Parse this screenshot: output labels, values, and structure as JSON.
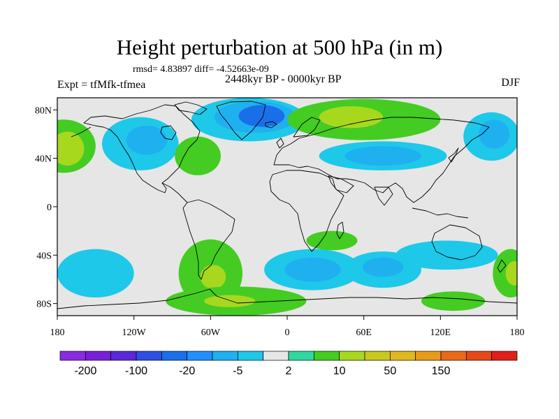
{
  "header": {
    "title": "Height perturbation at 500 hPa (in m)",
    "rmsd_line": "rmsd= 4.83897 diff= -4.52663e-09",
    "experiment": "Expt = tfMfk-tfmea",
    "period": "2448kyr BP - 0000kyr BP",
    "season": "DJF"
  },
  "map": {
    "projection": "equirectangular",
    "lon_range": [
      -180,
      180
    ],
    "lat_range": [
      -90,
      90
    ],
    "lat_ticks": [
      {
        "lat": 80,
        "label": "80N"
      },
      {
        "lat": 40,
        "label": "40N"
      },
      {
        "lat": 0,
        "label": "0"
      },
      {
        "lat": -40,
        "label": "40S"
      },
      {
        "lat": -80,
        "label": "80S"
      }
    ],
    "lon_ticks": [
      {
        "lon": -180,
        "label": "180"
      },
      {
        "lon": -120,
        "label": "120W"
      },
      {
        "lon": -60,
        "label": "60W"
      },
      {
        "lon": 0,
        "label": "0"
      },
      {
        "lon": 60,
        "label": "60E"
      },
      {
        "lon": 120,
        "label": "120E"
      },
      {
        "lon": 180,
        "label": "180"
      }
    ],
    "background_color": "#e6e6e6",
    "contour_regions": [
      {
        "name": "ne-pacific-high",
        "level": "green",
        "lon": -175,
        "lat": 50,
        "rx": 25,
        "ry": 22
      },
      {
        "name": "ne-pacific-high-core",
        "level": "yellow-green",
        "lon": -172,
        "lat": 48,
        "rx": 13,
        "ry": 14
      },
      {
        "name": "n-america-low",
        "level": "cyan",
        "lon": -115,
        "lat": 52,
        "rx": 30,
        "ry": 22
      },
      {
        "name": "n-america-low-core",
        "level": "light-blue",
        "lon": -110,
        "lat": 55,
        "rx": 16,
        "ry": 12
      },
      {
        "name": "e-us-high",
        "level": "green",
        "lon": -70,
        "lat": 42,
        "rx": 18,
        "ry": 16
      },
      {
        "name": "greenland-low",
        "level": "cyan",
        "lon": -30,
        "lat": 72,
        "rx": 45,
        "ry": 18
      },
      {
        "name": "greenland-low-mid",
        "level": "light-blue",
        "lon": -25,
        "lat": 74,
        "rx": 32,
        "ry": 13
      },
      {
        "name": "greenland-low-core",
        "level": "blue",
        "lon": -20,
        "lat": 75,
        "rx": 18,
        "ry": 9
      },
      {
        "name": "eurasia-high",
        "level": "green",
        "lon": 60,
        "lat": 72,
        "rx": 60,
        "ry": 17
      },
      {
        "name": "eurasia-high-core",
        "level": "yellow-green",
        "lon": 50,
        "lat": 74,
        "rx": 25,
        "ry": 9
      },
      {
        "name": "central-asia-low",
        "level": "cyan",
        "lon": 75,
        "lat": 42,
        "rx": 50,
        "ry": 12
      },
      {
        "name": "central-asia-low-core",
        "level": "light-blue",
        "lon": 75,
        "lat": 42,
        "rx": 30,
        "ry": 8
      },
      {
        "name": "nw-pacific-low",
        "level": "cyan",
        "lon": 160,
        "lat": 58,
        "rx": 22,
        "ry": 20
      },
      {
        "name": "nw-pacific-low-core",
        "level": "light-blue",
        "lon": 162,
        "lat": 60,
        "rx": 12,
        "ry": 12
      },
      {
        "name": "s-america-high",
        "level": "green",
        "lon": -60,
        "lat": -55,
        "rx": 25,
        "ry": 28
      },
      {
        "name": "s-america-high-core",
        "level": "yellow-green",
        "lon": -58,
        "lat": -58,
        "rx": 10,
        "ry": 10
      },
      {
        "name": "south-atlantic-low",
        "level": "cyan",
        "lon": 20,
        "lat": -52,
        "rx": 38,
        "ry": 17
      },
      {
        "name": "south-atlantic-low-core",
        "level": "light-blue",
        "lon": 20,
        "lat": -52,
        "rx": 22,
        "ry": 10
      },
      {
        "name": "southern-africa-high",
        "level": "green",
        "lon": 35,
        "lat": -28,
        "rx": 20,
        "ry": 8
      },
      {
        "name": "indian-ocean-low",
        "level": "cyan",
        "lon": 75,
        "lat": -52,
        "rx": 30,
        "ry": 15
      },
      {
        "name": "indian-ocean-low-core",
        "level": "light-blue",
        "lon": 75,
        "lat": -50,
        "rx": 16,
        "ry": 8
      },
      {
        "name": "australia-low",
        "level": "cyan",
        "lon": 125,
        "lat": -40,
        "rx": 40,
        "ry": 12
      },
      {
        "name": "s-pacific-high",
        "level": "green",
        "lon": 175,
        "lat": -55,
        "rx": 14,
        "ry": 20
      },
      {
        "name": "s-pacific-high-core",
        "level": "yellow-green",
        "lon": 178,
        "lat": -55,
        "rx": 7,
        "ry": 10
      },
      {
        "name": "sw-pacific-low",
        "level": "cyan",
        "lon": -150,
        "lat": -55,
        "rx": 30,
        "ry": 20
      },
      {
        "name": "antarctic-high",
        "level": "green",
        "lon": -40,
        "lat": -78,
        "rx": 55,
        "ry": 12
      },
      {
        "name": "antarctic-high-core",
        "level": "yellow-green",
        "lon": -45,
        "lat": -78,
        "rx": 20,
        "ry": 5
      },
      {
        "name": "antarctic-east-high",
        "level": "green",
        "lon": 130,
        "lat": -78,
        "rx": 25,
        "ry": 8
      }
    ]
  },
  "colorbar": {
    "colors": [
      "#8a2be2",
      "#7a1fd8",
      "#5a28d8",
      "#2d4fe6",
      "#1a6fe8",
      "#1e90ff",
      "#1fb0f0",
      "#1ec8e8",
      "#e6e6e6",
      "#2ed8a0",
      "#44cc22",
      "#a8d81e",
      "#c8c81e",
      "#e0b81e",
      "#e89a1a",
      "#e86a18",
      "#e84818",
      "#e02018"
    ],
    "labels": [
      "-200",
      "-100",
      "-20",
      "-5",
      "2",
      "10",
      "50",
      "150"
    ]
  }
}
